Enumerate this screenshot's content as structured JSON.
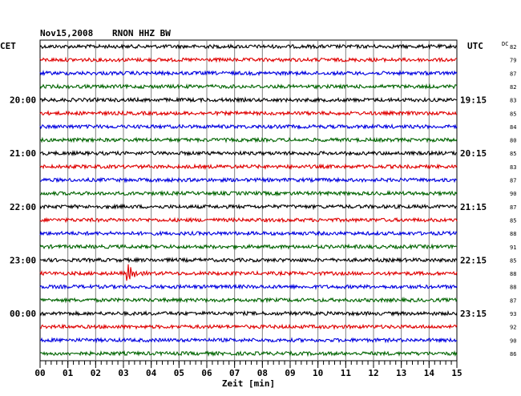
{
  "header": {
    "date": "Nov15,2008",
    "station": "RNON HHZ BW",
    "left_zone": "CET",
    "right_zone": "UTC",
    "dc_label": "DC"
  },
  "chart_data": {
    "type": "line",
    "title": "Nov15,2008   RNON HHZ BW",
    "xlabel": "Zeit [min]",
    "x_ticks": [
      "00",
      "01",
      "02",
      "03",
      "04",
      "05",
      "06",
      "07",
      "08",
      "09",
      "10",
      "11",
      "12",
      "13",
      "14",
      "15"
    ],
    "xlim": [
      0,
      15
    ],
    "grid": true,
    "line_colors": [
      "#000000",
      "#e00000",
      "#0000e0",
      "#006400"
    ],
    "left_time_labels": [
      {
        "row": 4,
        "label": "20:00"
      },
      {
        "row": 8,
        "label": "21:00"
      },
      {
        "row": 12,
        "label": "22:00"
      },
      {
        "row": 16,
        "label": "23:00"
      },
      {
        "row": 20,
        "label": "00:00"
      }
    ],
    "right_time_labels": [
      {
        "row": 4,
        "label": "19:15"
      },
      {
        "row": 8,
        "label": "20:15"
      },
      {
        "row": 12,
        "label": "21:15"
      },
      {
        "row": 16,
        "label": "22:15"
      },
      {
        "row": 20,
        "label": "23:15"
      }
    ],
    "dc_offsets": [
      82,
      79,
      87,
      82,
      83,
      85,
      84,
      80,
      85,
      83,
      87,
      90,
      87,
      85,
      88,
      91,
      85,
      88,
      88,
      87,
      93,
      92,
      90,
      86
    ],
    "event": {
      "row": 17,
      "minute": 3.1,
      "color": "#e00000"
    }
  }
}
